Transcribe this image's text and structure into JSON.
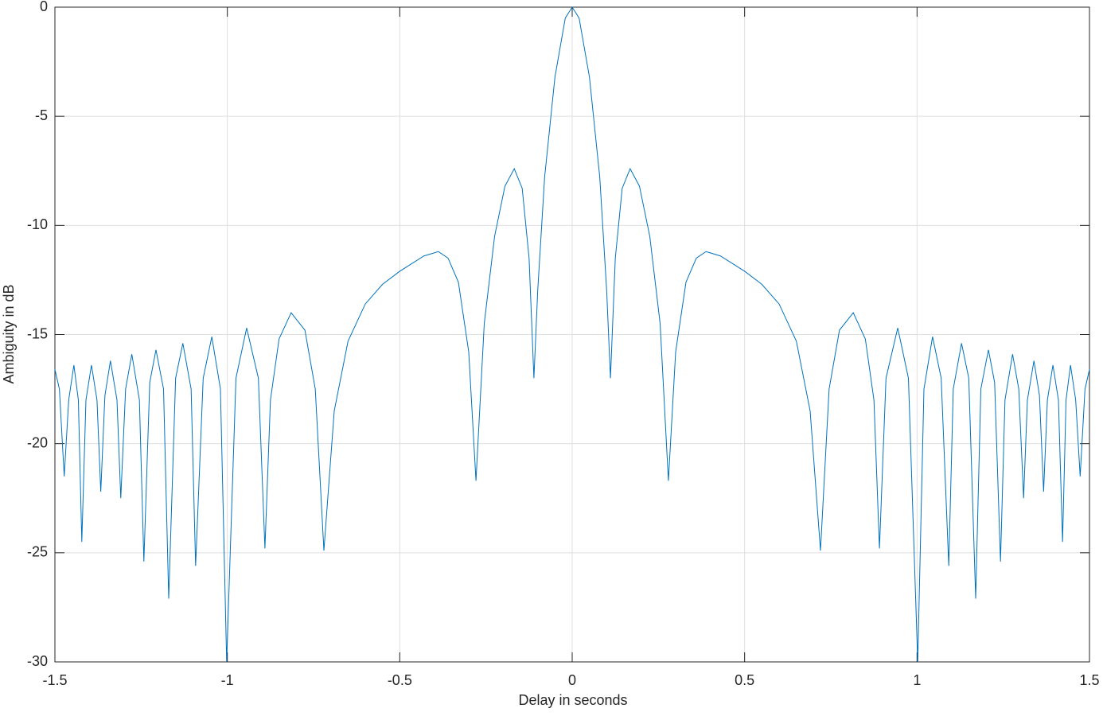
{
  "chart_data": {
    "type": "line",
    "x_label": "Delay in seconds",
    "y_label": "Ambiguity in dB",
    "xlim": [
      -1.5,
      1.5
    ],
    "xticks": [
      -1.5,
      -1,
      -0.5,
      0,
      0.5,
      1,
      1.5
    ],
    "ylim": [
      -30,
      0
    ],
    "yticks": [
      -30,
      -25,
      -20,
      -15,
      -10,
      -5,
      0
    ],
    "grid": true,
    "x": [
      -1.5,
      -1.487,
      -1.473,
      -1.46,
      -1.445,
      -1.432,
      -1.422,
      -1.41,
      -1.394,
      -1.378,
      -1.367,
      -1.355,
      -1.339,
      -1.32,
      -1.309,
      -1.295,
      -1.277,
      -1.255,
      -1.242,
      -1.225,
      -1.207,
      -1.185,
      -1.17,
      -1.15,
      -1.129,
      -1.105,
      -1.092,
      -1.07,
      -1.045,
      -1.02,
      -1.002,
      -0.975,
      -0.944,
      -0.91,
      -0.891,
      -0.875,
      -0.85,
      -0.815,
      -0.775,
      -0.745,
      -0.72,
      -0.69,
      -0.65,
      -0.6,
      -0.55,
      -0.5,
      -0.47,
      -0.43,
      -0.388,
      -0.36,
      -0.33,
      -0.3,
      -0.279,
      -0.255,
      -0.225,
      -0.195,
      -0.168,
      -0.145,
      -0.125,
      -0.111,
      -0.1,
      -0.08,
      -0.05,
      -0.02,
      0,
      0.02,
      0.05,
      0.08,
      0.1,
      0.111,
      0.125,
      0.145,
      0.168,
      0.195,
      0.225,
      0.255,
      0.279,
      0.3,
      0.33,
      0.36,
      0.388,
      0.43,
      0.47,
      0.5,
      0.55,
      0.6,
      0.65,
      0.69,
      0.72,
      0.745,
      0.775,
      0.815,
      0.85,
      0.875,
      0.891,
      0.91,
      0.944,
      0.975,
      1.002,
      1.02,
      1.045,
      1.07,
      1.092,
      1.105,
      1.129,
      1.15,
      1.17,
      1.185,
      1.207,
      1.225,
      1.242,
      1.255,
      1.277,
      1.295,
      1.309,
      1.32,
      1.339,
      1.355,
      1.367,
      1.378,
      1.394,
      1.41,
      1.422,
      1.432,
      1.445,
      1.46,
      1.473,
      1.487,
      1.5
    ],
    "series": [
      {
        "color": "#0072bd",
        "values": [
          -16.6,
          -17.5,
          -21.5,
          -18,
          -16.4,
          -18,
          -24.5,
          -18,
          -16.4,
          -18,
          -22.2,
          -17.8,
          -16.2,
          -18,
          -22.5,
          -17.5,
          -15.9,
          -18,
          -25.4,
          -17.2,
          -15.7,
          -17.5,
          -27.1,
          -17,
          -15.4,
          -17.5,
          -25.6,
          -17,
          -15.1,
          -17.5,
          -30,
          -17,
          -14.7,
          -17,
          -24.8,
          -18,
          -15.2,
          -14,
          -14.8,
          -17.5,
          -24.9,
          -18.5,
          -15.3,
          -13.6,
          -12.7,
          -12.1,
          -11.8,
          -11.4,
          -11.2,
          -11.5,
          -12.6,
          -15.8,
          -21.7,
          -14.5,
          -10.5,
          -8.2,
          -7.4,
          -8.3,
          -11.5,
          -17,
          -13,
          -7.8,
          -3.2,
          -0.5,
          0,
          -0.5,
          -3.2,
          -7.8,
          -13,
          -17,
          -11.5,
          -8.3,
          -7.4,
          -8.2,
          -10.5,
          -14.5,
          -21.7,
          -15.8,
          -12.6,
          -11.5,
          -11.2,
          -11.4,
          -11.8,
          -12.1,
          -12.7,
          -13.6,
          -15.3,
          -18.5,
          -24.9,
          -17.5,
          -14.8,
          -14,
          -15.2,
          -18,
          -24.8,
          -17,
          -14.7,
          -17,
          -30,
          -17.5,
          -15.1,
          -17,
          -25.6,
          -17.5,
          -15.4,
          -17,
          -27.1,
          -17.5,
          -15.7,
          -17.2,
          -25.4,
          -18,
          -15.9,
          -17.5,
          -22.5,
          -18,
          -16.2,
          -17.8,
          -22.2,
          -18,
          -16.4,
          -18,
          -24.5,
          -18,
          -16.4,
          -18,
          -21.5,
          -17.5,
          -16.6
        ]
      }
    ]
  }
}
